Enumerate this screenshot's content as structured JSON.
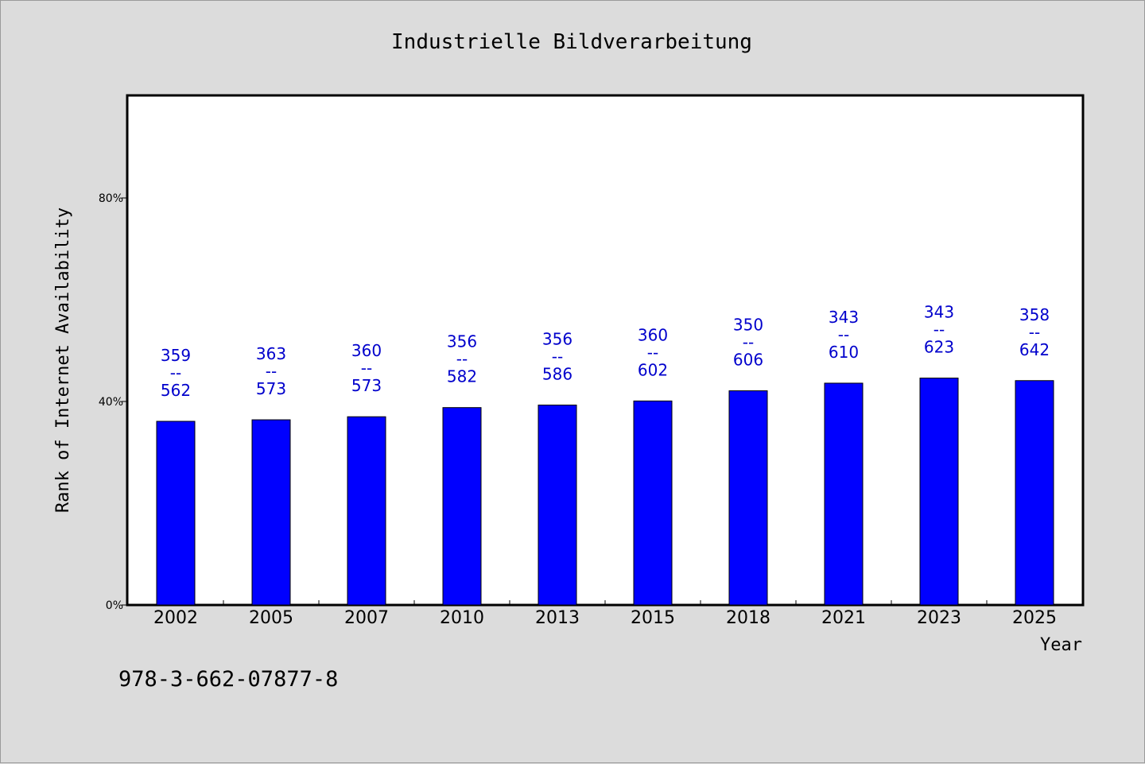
{
  "chart_data": {
    "type": "bar",
    "title": "Industrielle Bildverarbeitung",
    "xlabel": "Year",
    "ylabel": "Rank of Internet Availability",
    "categories": [
      "2002",
      "2005",
      "2007",
      "2010",
      "2013",
      "2015",
      "2018",
      "2021",
      "2023",
      "2025"
    ],
    "values": [
      36.1,
      36.4,
      37.0,
      38.8,
      39.3,
      40.1,
      42.1,
      43.6,
      44.6,
      44.1
    ],
    "value_labels": [
      {
        "top": "359",
        "sep": "--",
        "bottom": "562"
      },
      {
        "top": "363",
        "sep": "--",
        "bottom": "573"
      },
      {
        "top": "360",
        "sep": "--",
        "bottom": "573"
      },
      {
        "top": "356",
        "sep": "--",
        "bottom": "582"
      },
      {
        "top": "356",
        "sep": "--",
        "bottom": "586"
      },
      {
        "top": "360",
        "sep": "--",
        "bottom": "602"
      },
      {
        "top": "350",
        "sep": "--",
        "bottom": "606"
      },
      {
        "top": "343",
        "sep": "--",
        "bottom": "610"
      },
      {
        "top": "343",
        "sep": "--",
        "bottom": "623"
      },
      {
        "top": "358",
        "sep": "--",
        "bottom": "642"
      }
    ],
    "ylim": [
      0,
      100
    ],
    "yticks": [
      0,
      40,
      80
    ],
    "ytick_labels": [
      "0%",
      "40%",
      "80%"
    ],
    "grid": false,
    "legend": "none",
    "bar_color": "#0000ff",
    "label_color": "#0000cc"
  },
  "footer": {
    "isbn": "978-3-662-07877-8"
  }
}
